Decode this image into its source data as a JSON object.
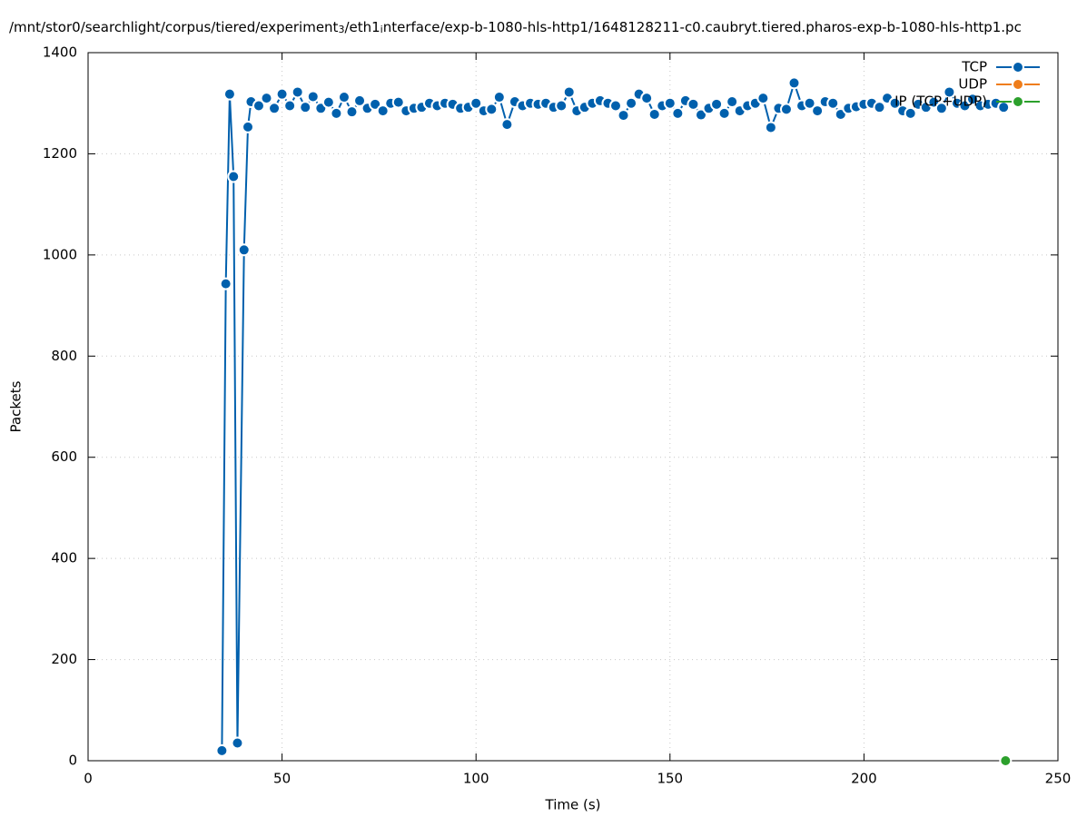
{
  "chart_data": {
    "type": "line",
    "title_parts": [
      {
        "text": "/mnt/stor0/searchlight/corpus/tiered/experiment",
        "sub": false
      },
      {
        "text": "3",
        "sub": true
      },
      {
        "text": "/eth1",
        "sub": false
      },
      {
        "text": "i",
        "sub": true
      },
      {
        "text": "nterface/exp-b-1080-hls-http1/1648128211-c0.caubryt.tiered.pharos-exp-b-1080-hls-http1.pc",
        "sub": false
      }
    ],
    "x_label": "Time (s)",
    "y_label": "Packets",
    "xlim": [
      0,
      250
    ],
    "xticks": [
      0,
      50,
      100,
      150,
      200,
      250
    ],
    "ylim": [
      0,
      1400
    ],
    "yticks": [
      0,
      200,
      400,
      600,
      800,
      1000,
      1200,
      1400
    ],
    "grid": true,
    "legend": "top-right",
    "series": [
      {
        "name": "TCP",
        "color": "#0060ad",
        "x": [
          34.5,
          35.5,
          36.5,
          37.5,
          38.5,
          40.2,
          41.2,
          42,
          44,
          46,
          48,
          50,
          52,
          54,
          56,
          58,
          60,
          62,
          64,
          66,
          68,
          70,
          72,
          74,
          76,
          78,
          80,
          82,
          84,
          86,
          88,
          90,
          92,
          94,
          96,
          98,
          100,
          102,
          104,
          106,
          108,
          110,
          112,
          114,
          116,
          118,
          120,
          122,
          124,
          126,
          128,
          130,
          132,
          134,
          136,
          138,
          140,
          142,
          144,
          146,
          148,
          150,
          152,
          154,
          156,
          158,
          160,
          162,
          164,
          166,
          168,
          170,
          172,
          174,
          176,
          178,
          180,
          182,
          184,
          186,
          188,
          190,
          192,
          194,
          196,
          198,
          200,
          202,
          204,
          206,
          208,
          210,
          212,
          214,
          216,
          218,
          220,
          222,
          224,
          226,
          228,
          230,
          232,
          234,
          236
        ],
        "values": [
          20,
          943,
          1318,
          1155,
          35,
          1010,
          1253,
          1303,
          1295,
          1310,
          1290,
          1318,
          1295,
          1322,
          1292,
          1313,
          1290,
          1302,
          1280,
          1312,
          1283,
          1305,
          1290,
          1298,
          1285,
          1300,
          1302,
          1285,
          1290,
          1292,
          1300,
          1295,
          1300,
          1298,
          1290,
          1292,
          1300,
          1285,
          1288,
          1312,
          1258,
          1303,
          1295,
          1300,
          1298,
          1300,
          1292,
          1295,
          1322,
          1285,
          1292,
          1300,
          1305,
          1300,
          1295,
          1276,
          1300,
          1318,
          1310,
          1278,
          1295,
          1300,
          1280,
          1305,
          1298,
          1277,
          1290,
          1298,
          1280,
          1303,
          1285,
          1295,
          1300,
          1310,
          1252,
          1290,
          1288,
          1340,
          1295,
          1300,
          1285,
          1303,
          1300,
          1278,
          1290,
          1293,
          1298,
          1300,
          1292,
          1310,
          1300,
          1285,
          1280,
          1298,
          1292,
          1302,
          1290,
          1322,
          1300,
          1295,
          1308,
          1295,
          1298,
          1300,
          1292
        ]
      },
      {
        "name": "UDP",
        "color": "#ef7d1a",
        "x": [],
        "values": []
      },
      {
        "name": "IP (TCP+UDP)",
        "color": "#2ca02c",
        "x": [
          236.5
        ],
        "values": [
          0
        ]
      }
    ]
  }
}
